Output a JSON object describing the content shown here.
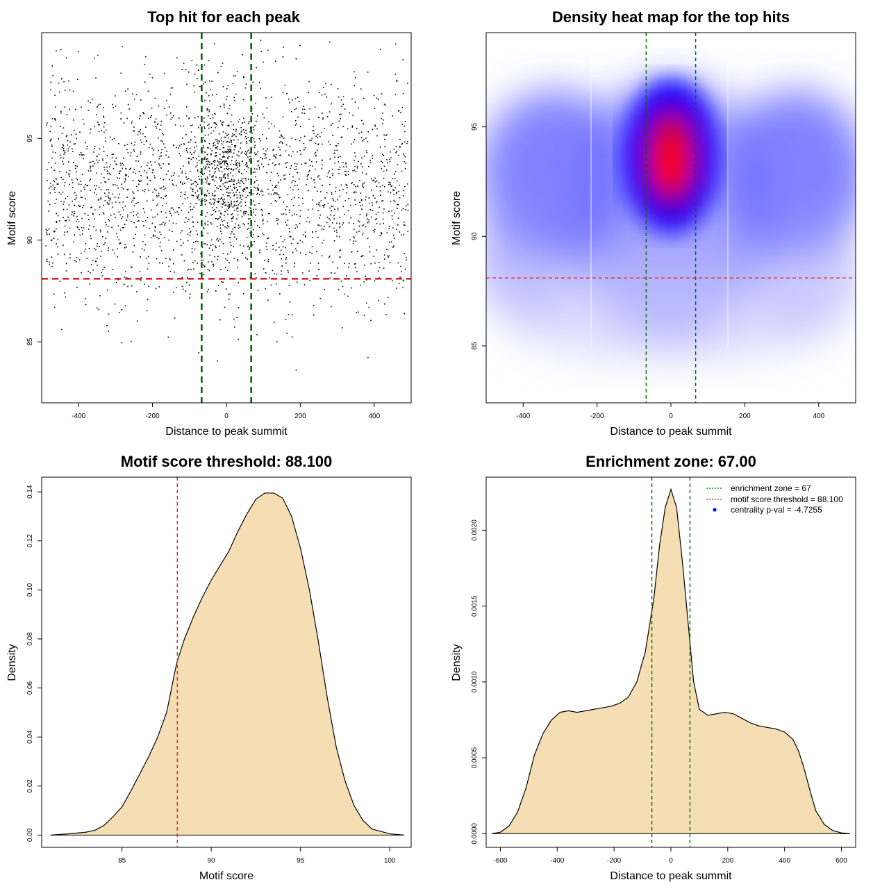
{
  "chart_data": [
    {
      "type": "scatter",
      "title": "Top hit for each peak",
      "xlabel": "Distance to peak summit",
      "ylabel": "Motif score",
      "xlim": [
        -500,
        500
      ],
      "ylim": [
        82,
        100.2
      ],
      "xticks": [
        "-400",
        "-200",
        "0",
        "200",
        "400"
      ],
      "yticks": [
        "85",
        "90",
        "95"
      ],
      "x_tick_values": [
        -400,
        -200,
        0,
        200,
        400
      ],
      "y_tick_values": [
        85,
        90,
        95
      ],
      "point_count_estimate": 2900,
      "point_color": "#000000",
      "reference_lines": [
        {
          "orientation": "vertical",
          "value": -67,
          "color": "#006400",
          "style": "dashed"
        },
        {
          "orientation": "vertical",
          "value": 67,
          "color": "#006400",
          "style": "dashed"
        },
        {
          "orientation": "horizontal",
          "value": 88.1,
          "color": "#dd2222",
          "style": "dashed"
        }
      ]
    },
    {
      "type": "heatmap",
      "title": "Density heat map for the top hits",
      "xlabel": "Distance to peak summit",
      "ylabel": "Motif score",
      "xlim": [
        -500,
        500
      ],
      "ylim": [
        82.4,
        99.3
      ],
      "xticks": [
        "-400",
        "-200",
        "0",
        "200",
        "400"
      ],
      "yticks": [
        "85",
        "90",
        "95"
      ],
      "x_tick_values": [
        -400,
        -200,
        0,
        200,
        400
      ],
      "y_tick_values": [
        85,
        90,
        95
      ],
      "color_scale": [
        "#ffffff",
        "#0000ff",
        "#ff0000"
      ],
      "peak_density_at": {
        "x": 0,
        "y": 93.3
      },
      "reference_lines": [
        {
          "orientation": "vertical",
          "value": -67,
          "color": "#006400",
          "style": "dashed"
        },
        {
          "orientation": "vertical",
          "value": 67,
          "color": "#006400",
          "style": "dashed"
        },
        {
          "orientation": "horizontal",
          "value": 88.1,
          "color": "#dd2222",
          "style": "dashed"
        }
      ]
    },
    {
      "type": "area",
      "title": "Motif score threshold: 88.100",
      "xlabel": "Motif score",
      "ylabel": "Density",
      "xlim": [
        80.5,
        101.2
      ],
      "ylim": [
        -0.005,
        0.146
      ],
      "xticks": [
        "85",
        "90",
        "95",
        "100"
      ],
      "yticks": [
        "0.00",
        "0.02",
        "0.04",
        "0.06",
        "0.08",
        "0.10",
        "0.12",
        "0.14"
      ],
      "x_tick_values": [
        85,
        90,
        95,
        100
      ],
      "y_tick_values": [
        0,
        0.02,
        0.04,
        0.06,
        0.08,
        0.1,
        0.12,
        0.14
      ],
      "fill_color": "#f5deb3",
      "x": [
        81,
        82,
        83,
        83.5,
        84,
        84.5,
        85,
        85.5,
        86,
        86.5,
        87,
        87.5,
        88,
        88.1,
        88.5,
        89,
        89.5,
        90,
        90.5,
        91,
        91.5,
        92,
        92.5,
        93,
        93.5,
        94,
        94.5,
        95,
        95.5,
        96,
        96.5,
        97,
        97.5,
        98,
        98.5,
        99,
        100,
        100.8
      ],
      "y": [
        0,
        0.0005,
        0.0012,
        0.002,
        0.004,
        0.0075,
        0.0115,
        0.018,
        0.025,
        0.032,
        0.04,
        0.05,
        0.068,
        0.071,
        0.08,
        0.089,
        0.097,
        0.104,
        0.11,
        0.116,
        0.124,
        0.131,
        0.137,
        0.1395,
        0.1395,
        0.1375,
        0.13,
        0.117,
        0.1,
        0.079,
        0.056,
        0.036,
        0.022,
        0.012,
        0.006,
        0.0025,
        0.0005,
        0
      ],
      "reference_lines": [
        {
          "orientation": "vertical",
          "value": 88.1,
          "color": "#dd2222",
          "style": "dashed"
        }
      ]
    },
    {
      "type": "area",
      "title": "Enrichment zone: 67.00",
      "xlabel": "Distance to peak summit",
      "ylabel": "Density",
      "xlim": [
        -650,
        650
      ],
      "ylim": [
        -9e-05,
        0.00235
      ],
      "xticks": [
        "-600",
        "-400",
        "-200",
        "0",
        "200",
        "400",
        "600"
      ],
      "yticks": [
        "0.0000",
        "0.0005",
        "0.0010",
        "0.0015",
        "0.0020"
      ],
      "x_tick_values": [
        -600,
        -400,
        -200,
        0,
        200,
        400,
        600
      ],
      "y_tick_values": [
        0,
        0.0005,
        0.001,
        0.0015,
        0.002
      ],
      "fill_color": "#f5deb3",
      "x": [
        -630,
        -600,
        -570,
        -540,
        -510,
        -480,
        -450,
        -420,
        -390,
        -360,
        -330,
        -300,
        -270,
        -240,
        -210,
        -180,
        -150,
        -120,
        -90,
        -60,
        -40,
        -20,
        0,
        20,
        40,
        60,
        80,
        100,
        130,
        160,
        190,
        220,
        250,
        280,
        310,
        340,
        370,
        400,
        430,
        450,
        470,
        490,
        510,
        540,
        570,
        600,
        630
      ],
      "y": [
        0,
        1e-05,
        5e-05,
        0.00014,
        0.0003,
        0.00052,
        0.00066,
        0.00075,
        0.0008,
        0.00081,
        0.0008,
        0.00081,
        0.00082,
        0.00083,
        0.00084,
        0.00086,
        0.0009,
        0.001,
        0.0012,
        0.00155,
        0.0019,
        0.00215,
        0.00227,
        0.00215,
        0.0018,
        0.0014,
        0.001,
        0.00082,
        0.00078,
        0.00079,
        0.0008,
        0.00079,
        0.00076,
        0.00073,
        0.00071,
        0.0007,
        0.00069,
        0.00067,
        0.00062,
        0.00054,
        0.00042,
        0.00028,
        0.00015,
        6e-05,
        2e-05,
        5e-06,
        0
      ],
      "reference_lines": [
        {
          "orientation": "vertical",
          "value": -67,
          "color": "#006400",
          "style": "dashed"
        },
        {
          "orientation": "vertical",
          "value": 67,
          "color": "#006400",
          "style": "dashed"
        }
      ],
      "legend": {
        "position": "top-right",
        "entries": [
          {
            "label": "enrichment zone = 67",
            "color": "#006400",
            "symbol": "dotted-line"
          },
          {
            "label": "motif score threshold = 88.100",
            "color": "#dd2222",
            "symbol": "dotted-line"
          },
          {
            "label": "centrality p-val = -4.7255",
            "color": "#0000ff",
            "symbol": "point"
          }
        ]
      }
    }
  ]
}
